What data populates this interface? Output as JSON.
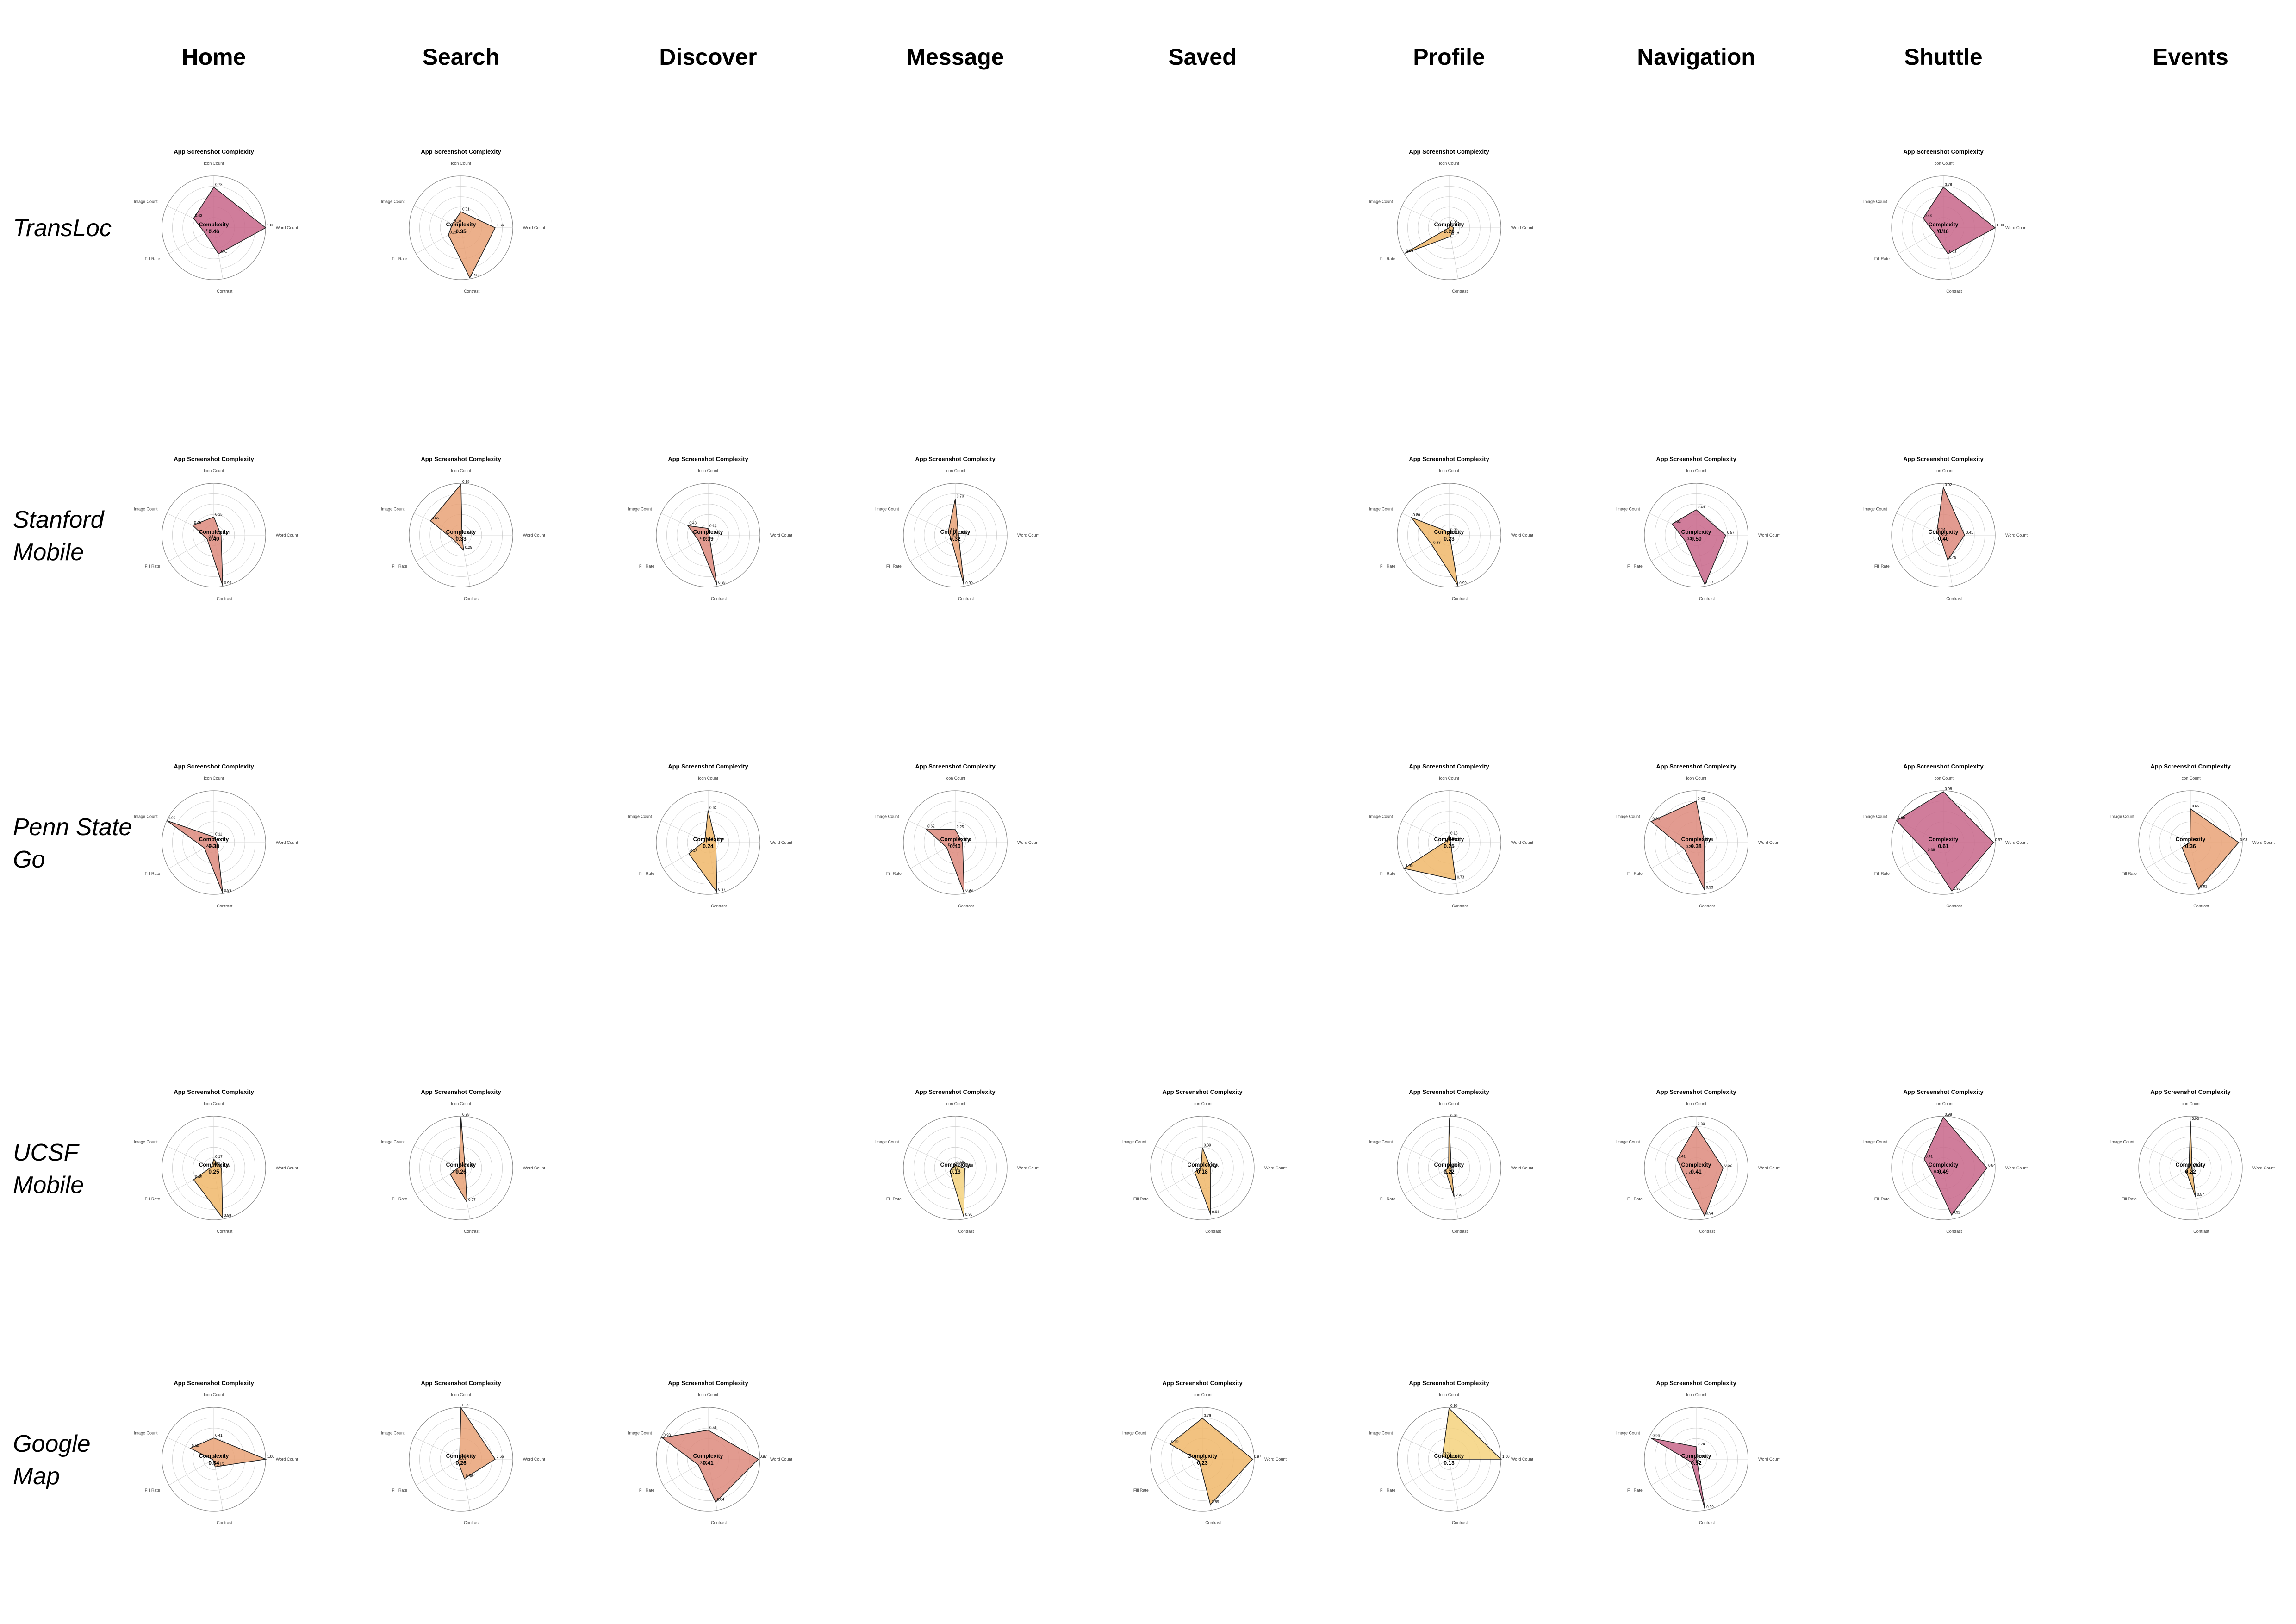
{
  "columns": [
    "Home",
    "Search",
    "Discover",
    "Message",
    "Saved",
    "Profile",
    "Navigation",
    "Shuttle",
    "Events"
  ],
  "rows": [
    {
      "label_lines": [
        "TransLoc"
      ]
    },
    {
      "label_lines": [
        "Stanford",
        "Mobile"
      ]
    },
    {
      "label_lines": [
        "Penn State",
        "Go"
      ]
    },
    {
      "label_lines": [
        "UCSF",
        "Mobile"
      ]
    },
    {
      "label_lines": [
        "Google",
        "Map"
      ]
    }
  ],
  "palette": {
    "high": "#c8668a",
    "mid_high": "#dd8a7c",
    "mid": "#e9a277",
    "mid_low": "#f0b76a",
    "low": "#f4d27e",
    "stroke": "#222222",
    "ring": "#cccccc"
  },
  "chart_data": {
    "type": "radar",
    "title": "App Screenshot Complexity",
    "center_label": "Complexity",
    "axes": [
      "Icon Count",
      "Word Count",
      "Contrast",
      "Fill Rate",
      "Image Count"
    ],
    "rlim": [
      0,
      1
    ],
    "grid": true,
    "charts": [
      {
        "row": 0,
        "col": 0,
        "complexity": 0.46,
        "values": [
          0.78,
          1.0,
          0.51,
          0.2,
          0.43
        ]
      },
      {
        "row": 0,
        "col": 1,
        "complexity": 0.35,
        "values": [
          0.31,
          0.66,
          0.98,
          0.28,
          0.18
        ]
      },
      {
        "row": 0,
        "col": 5,
        "complexity": 0.2,
        "values": [
          0.06,
          0.09,
          0.17,
          0.99,
          0.0
        ]
      },
      {
        "row": 0,
        "col": 7,
        "complexity": 0.46,
        "values": [
          0.78,
          1.0,
          0.51,
          0.2,
          0.43
        ]
      },
      {
        "row": 1,
        "col": 0,
        "complexity": 0.4,
        "values": [
          0.35,
          0.14,
          0.99,
          0.15,
          0.45
        ]
      },
      {
        "row": 1,
        "col": 1,
        "complexity": 0.33,
        "values": [
          0.98,
          0.02,
          0.29,
          0.17,
          0.65
        ]
      },
      {
        "row": 1,
        "col": 2,
        "complexity": 0.39,
        "values": [
          0.13,
          0.02,
          0.98,
          0.21,
          0.43
        ]
      },
      {
        "row": 1,
        "col": 3,
        "complexity": 0.32,
        "values": [
          0.7,
          0.06,
          0.99,
          0.1,
          0.15
        ]
      },
      {
        "row": 1,
        "col": 5,
        "complexity": 0.23,
        "values": [
          0.06,
          0.01,
          0.99,
          0.38,
          0.8
        ]
      },
      {
        "row": 1,
        "col": 6,
        "complexity": 0.5,
        "values": [
          0.49,
          0.57,
          0.97,
          0.24,
          0.51
        ]
      },
      {
        "row": 1,
        "col": 7,
        "complexity": 0.4,
        "values": [
          0.92,
          0.41,
          0.49,
          0.07,
          0.14
        ]
      },
      {
        "row": 2,
        "col": 0,
        "complexity": 0.38,
        "values": [
          0.11,
          0.06,
          0.99,
          0.21,
          1.0
        ]
      },
      {
        "row": 2,
        "col": 2,
        "complexity": 0.24,
        "values": [
          0.62,
          0.15,
          0.97,
          0.43,
          0.07
        ]
      },
      {
        "row": 2,
        "col": 3,
        "complexity": 0.4,
        "values": [
          0.25,
          0.14,
          0.99,
          0.19,
          0.62
        ]
      },
      {
        "row": 2,
        "col": 5,
        "complexity": 0.25,
        "values": [
          0.13,
          0.03,
          0.73,
          1.0,
          0.06
        ]
      },
      {
        "row": 2,
        "col": 6,
        "complexity": 0.38,
        "values": [
          0.8,
          0.16,
          0.93,
          0.26,
          0.96
        ]
      },
      {
        "row": 2,
        "col": 7,
        "complexity": 0.61,
        "values": [
          0.98,
          0.97,
          0.95,
          0.38,
          1.0
        ]
      },
      {
        "row": 2,
        "col": 8,
        "complexity": 0.36,
        "values": [
          0.65,
          0.93,
          0.91,
          0.19,
          0.01
        ]
      },
      {
        "row": 3,
        "col": 0,
        "complexity": 0.25,
        "values": [
          0.17,
          0.15,
          0.98,
          0.45,
          0.05
        ]
      },
      {
        "row": 3,
        "col": 1,
        "complexity": 0.26,
        "values": [
          0.98,
          0.08,
          0.67,
          0.24,
          0.04
        ]
      },
      {
        "row": 3,
        "col": 3,
        "complexity": 0.13,
        "values": [
          0.05,
          0.18,
          0.96,
          0.12,
          0.05
        ]
      },
      {
        "row": 3,
        "col": 4,
        "complexity": 0.18,
        "values": [
          0.39,
          0.16,
          0.91,
          0.17,
          0.03
        ]
      },
      {
        "row": 3,
        "col": 5,
        "complexity": 0.22,
        "values": [
          0.96,
          0.04,
          0.57,
          0.08,
          0.01
        ]
      },
      {
        "row": 3,
        "col": 6,
        "complexity": 0.41,
        "values": [
          0.8,
          0.52,
          0.94,
          0.27,
          0.41
        ]
      },
      {
        "row": 3,
        "col": 7,
        "complexity": 0.49,
        "values": [
          0.98,
          0.84,
          0.92,
          0.24,
          0.41
        ]
      },
      {
        "row": 3,
        "col": 8,
        "complexity": 0.22,
        "values": [
          0.9,
          0.03,
          0.57,
          0.1,
          0.03
        ]
      },
      {
        "row": 4,
        "col": 0,
        "complexity": 0.34,
        "values": [
          0.41,
          1.0,
          0.15,
          0.02,
          0.5
        ]
      },
      {
        "row": 4,
        "col": 1,
        "complexity": 0.26,
        "values": [
          0.99,
          0.66,
          0.38,
          0.07,
          0.03
        ]
      },
      {
        "row": 4,
        "col": 2,
        "complexity": 0.41,
        "values": [
          0.56,
          0.97,
          0.84,
          0.22,
          0.98
        ]
      },
      {
        "row": 4,
        "col": 4,
        "complexity": 0.23,
        "values": [
          0.79,
          0.97,
          0.89,
          0.07,
          0.69
        ]
      },
      {
        "row": 4,
        "col": 5,
        "complexity": 0.13,
        "values": [
          0.98,
          1.0,
          0.0,
          0.0,
          0.14
        ]
      },
      {
        "row": 4,
        "col": 6,
        "complexity": 0.52,
        "values": [
          0.24,
          0.01,
          0.99,
          0.11,
          0.96
        ]
      }
    ]
  }
}
